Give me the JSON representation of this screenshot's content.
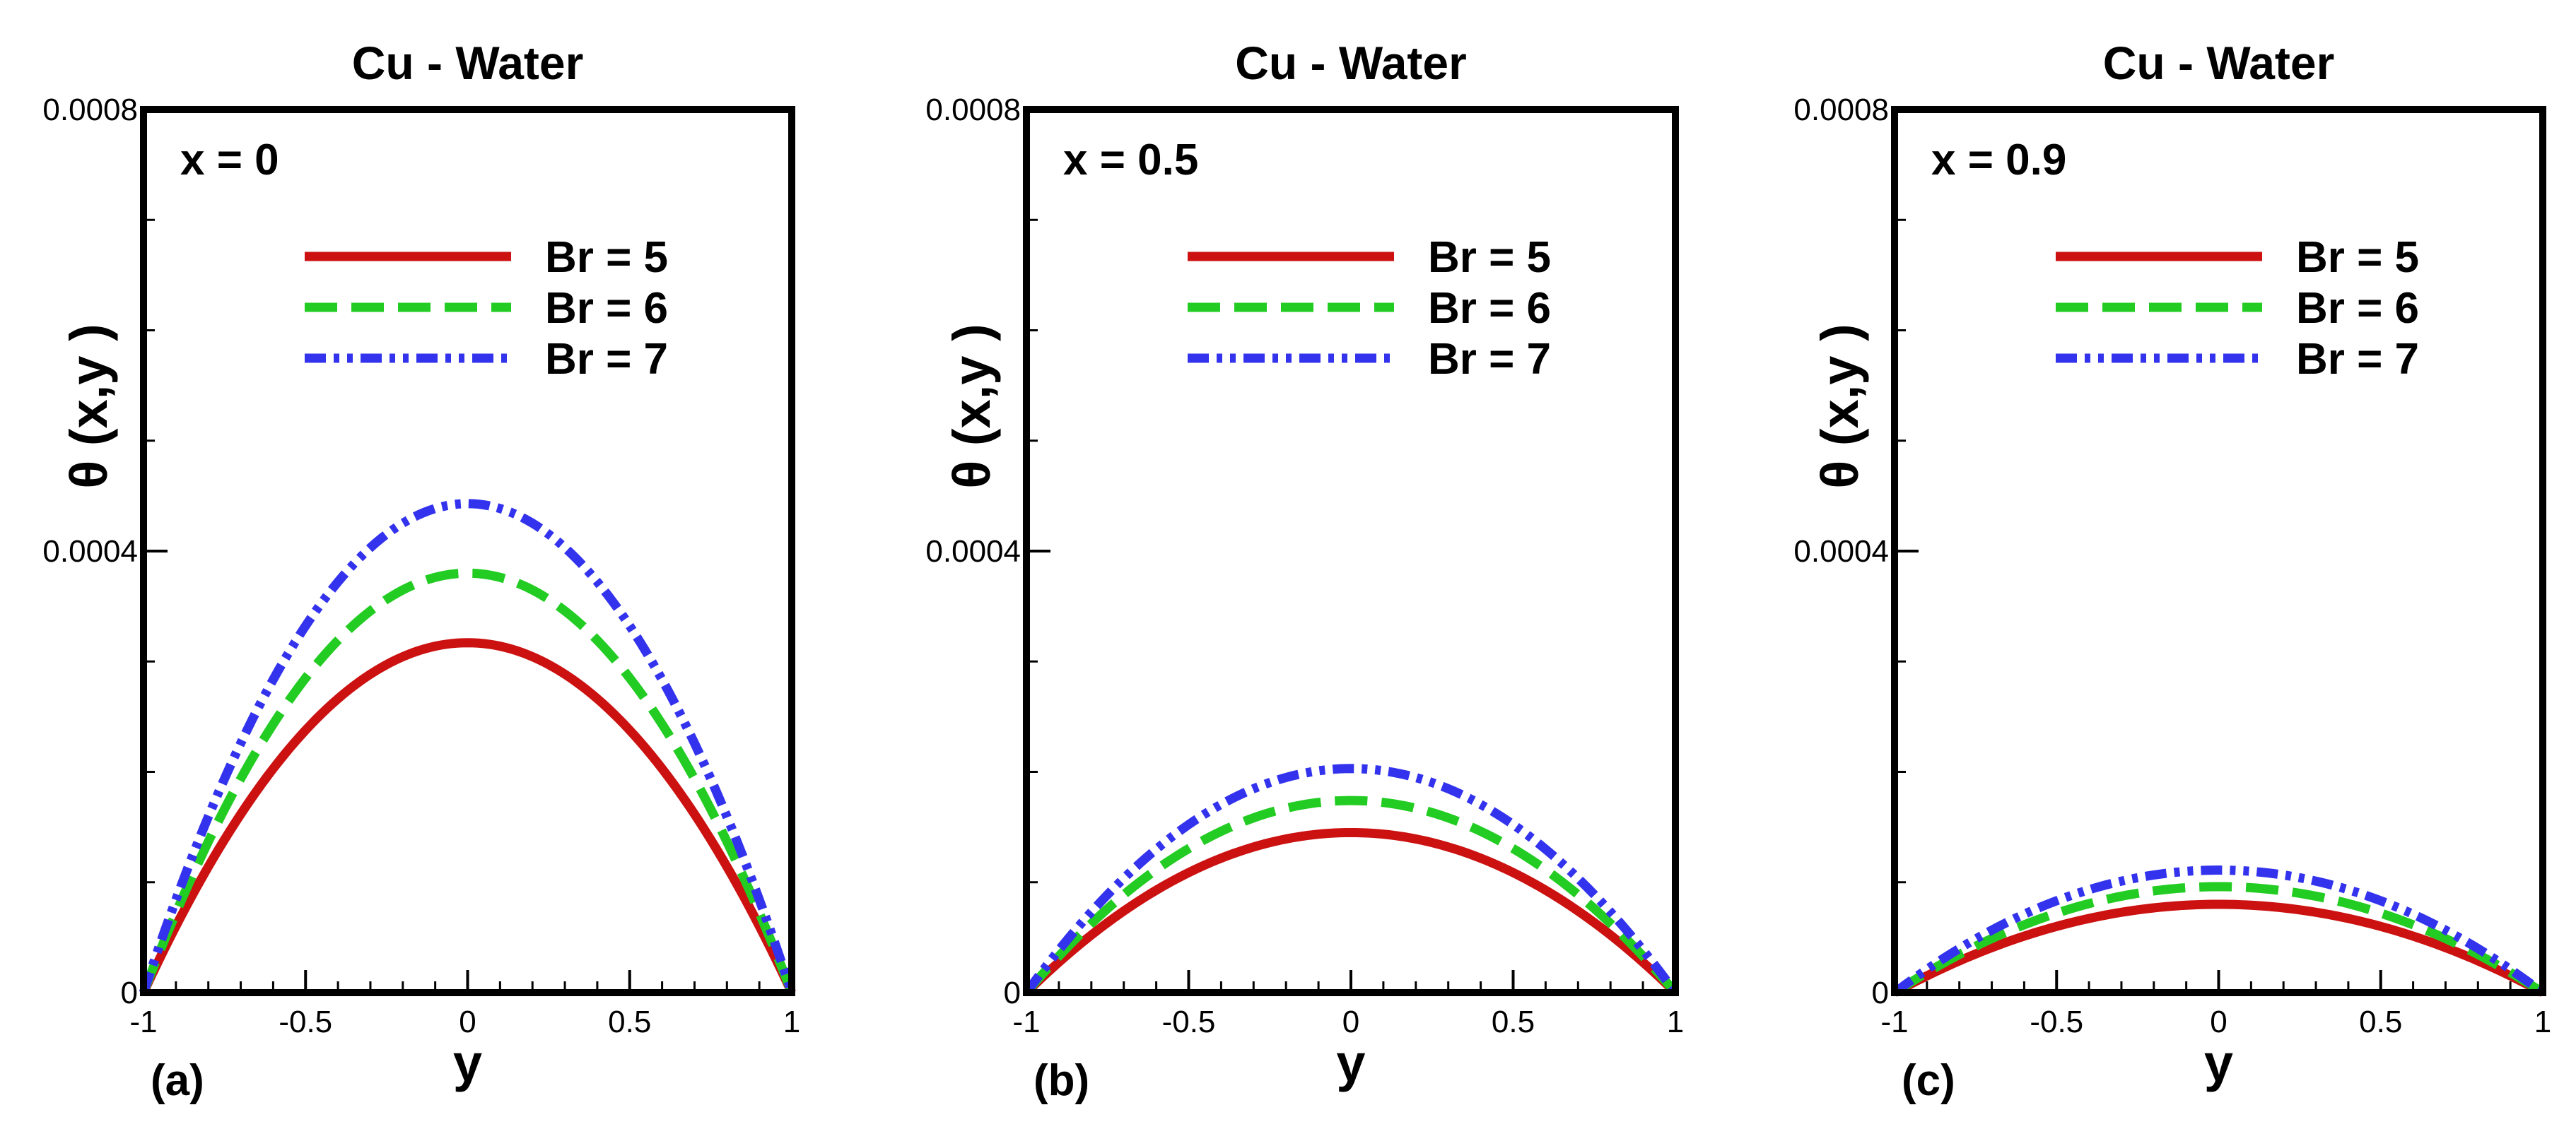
{
  "chart_data": [
    {
      "type": "line",
      "panel_label": "(a)",
      "title": "Cu - Water",
      "annotation": "x = 0",
      "xlabel": "y",
      "ylabel": "θ (x,y )",
      "xlim": [
        -1,
        1
      ],
      "ylim": [
        0,
        0.0008
      ],
      "xticks": [
        -1,
        -0.5,
        0,
        0.5,
        1
      ],
      "xtick_labels": [
        "-1",
        "-0.5",
        "0",
        "0.5",
        "1"
      ],
      "yticks": [
        0,
        0.0004,
        0.0008
      ],
      "ytick_labels": [
        "0",
        "0.0004",
        "0.0008"
      ],
      "legend_position": "upper-right",
      "series": [
        {
          "name": "Br = 5",
          "style": "solid",
          "color": "#cc1111",
          "peak": 0.000317
        },
        {
          "name": "Br = 6",
          "style": "dashed",
          "color": "#22cc22",
          "peak": 0.00038
        },
        {
          "name": "Br = 7",
          "style": "dash-dot-dot",
          "color": "#3333ee",
          "peak": 0.000443
        }
      ]
    },
    {
      "type": "line",
      "panel_label": "(b)",
      "title": "Cu - Water",
      "annotation": "x = 0.5",
      "xlabel": "y",
      "ylabel": "θ (x,y )",
      "xlim": [
        -1,
        1
      ],
      "ylim": [
        0,
        0.0008
      ],
      "xticks": [
        -1,
        -0.5,
        0,
        0.5,
        1
      ],
      "xtick_labels": [
        "-1",
        "-0.5",
        "0",
        "0.5",
        "1"
      ],
      "yticks": [
        0,
        0.0004,
        0.0008
      ],
      "ytick_labels": [
        "0",
        "0.0004",
        "0.0008"
      ],
      "legend_position": "upper-right",
      "series": [
        {
          "name": "Br = 5",
          "style": "solid",
          "color": "#cc1111",
          "peak": 0.000145
        },
        {
          "name": "Br = 6",
          "style": "dashed",
          "color": "#22cc22",
          "peak": 0.000174
        },
        {
          "name": "Br = 7",
          "style": "dash-dot-dot",
          "color": "#3333ee",
          "peak": 0.000203
        }
      ]
    },
    {
      "type": "line",
      "panel_label": "(c)",
      "title": "Cu - Water",
      "annotation": "x = 0.9",
      "xlabel": "y",
      "ylabel": "θ (x,y )",
      "xlim": [
        -1,
        1
      ],
      "ylim": [
        0,
        0.0008
      ],
      "xticks": [
        -1,
        -0.5,
        0,
        0.5,
        1
      ],
      "xtick_labels": [
        "-1",
        "-0.5",
        "0",
        "0.5",
        "1"
      ],
      "yticks": [
        0,
        0.0004,
        0.0008
      ],
      "ytick_labels": [
        "0",
        "0.0004",
        "0.0008"
      ],
      "legend_position": "upper-right",
      "series": [
        {
          "name": "Br = 5",
          "style": "solid",
          "color": "#cc1111",
          "peak": 8e-05
        },
        {
          "name": "Br = 6",
          "style": "dashed",
          "color": "#22cc22",
          "peak": 9.6e-05
        },
        {
          "name": "Br = 7",
          "style": "dash-dot-dot",
          "color": "#3333ee",
          "peak": 0.000111
        }
      ]
    }
  ]
}
